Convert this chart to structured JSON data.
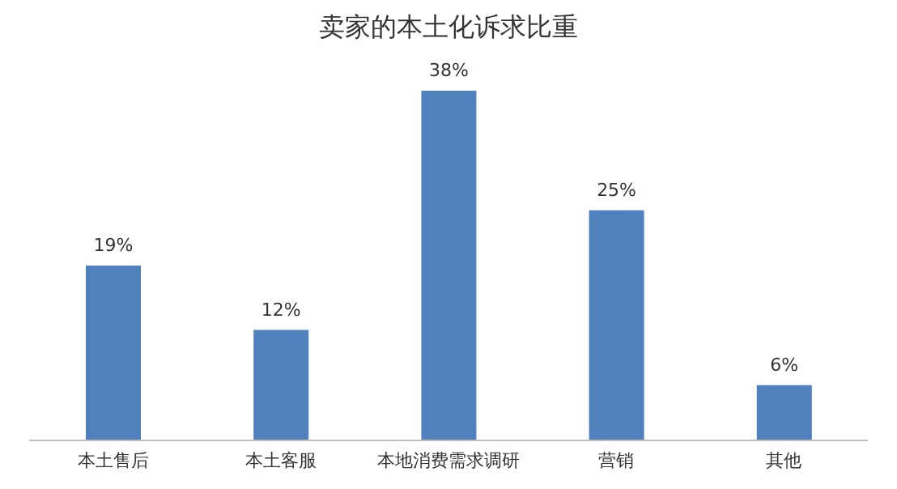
{
  "chart_data": {
    "type": "bar",
    "title": "卖家的本土化诉求比重",
    "categories": [
      "本土售后",
      "本土客服",
      "本地消费需求调研",
      "营销",
      "其他"
    ],
    "values": [
      19,
      12,
      38,
      25,
      6
    ],
    "value_labels": [
      "19%",
      "12%",
      "38%",
      "25%",
      "6%"
    ],
    "color": "#4f81bd",
    "grid": false,
    "legend": false
  }
}
